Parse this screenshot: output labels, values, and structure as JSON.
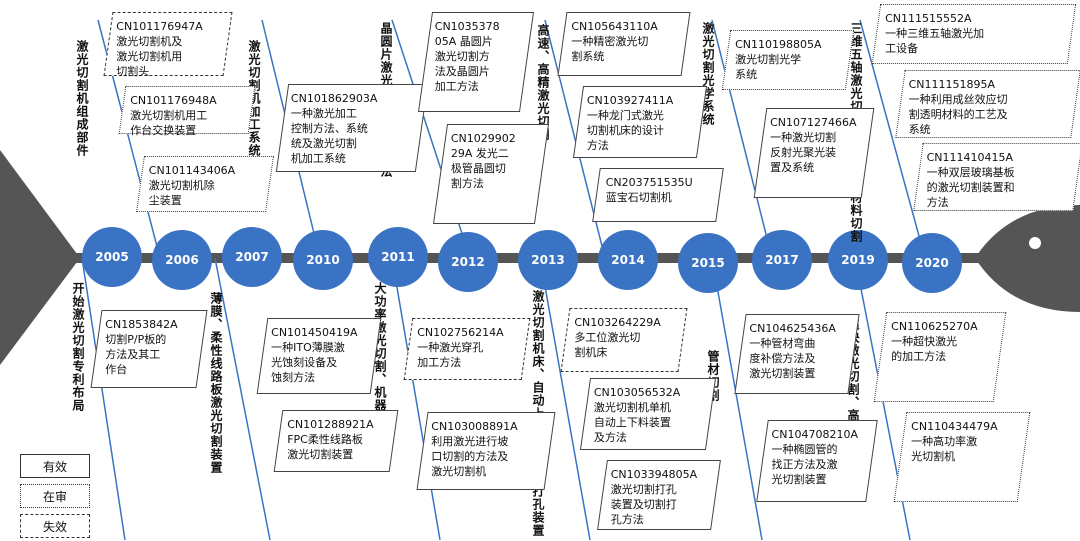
{
  "years": [
    "2005",
    "2006",
    "2007",
    "2010",
    "2011",
    "2012",
    "2013",
    "2014",
    "2015",
    "2017",
    "2019",
    "2020"
  ],
  "categories_top": [
    "激光切割机组成部件",
    "激光切割机加工系统",
    "晶圆片激光切割、加工方法",
    "高速、高精激光切割",
    "激光切割光学系统",
    "三维五轴激光切割、透明脆性材料切割"
  ],
  "categories_bottom": [
    "开始激光切割专利布局",
    "薄膜、柔性线路板激光切割装置",
    "大功率激光切割、机器人切割",
    "激光切割机床、自动上下料装置、打孔装置",
    "管材切割",
    "超快激光切割、高功率激光切割"
  ],
  "patents_top": [
    "CN101176947A\n激光切割机及\n激光切割机用\n切割头",
    "CN101176948A\n激光切割机用工\n作台交换装置",
    "CN101143406A\n激光切割机除\n尘装置",
    "CN101862903A\n一种激光加工\n控制方法、系统\n统及激光切割\n机加工系统",
    "CN1035378\n05A 晶圆片\n激光切割方\n法及晶圆片\n加工方法",
    "CN1029902\n29A 发光二\n极管晶圆切\n割方法",
    "CN105643110A\n一种精密激光切\n割系统",
    "CN103927411A\n一种龙门式激光\n切割机床的设计\n方法",
    "CN203751535U\n蓝宝石切割机",
    "CN110198805A\n激光切割光学\n系统",
    "CN107127466A\n一种激光切割\n反射光聚光装\n置及系统",
    "CN111515552A\n一种三维五轴激光加\n工设备",
    "CN111151895A\n一种利用成丝效应切\n割透明材料的工艺及\n系统",
    "CN111410415A\n一种双层玻璃基板\n的激光切割装置和\n方法"
  ],
  "patents_bottom": [
    "CN1853842A\n切割P/P板的\n方法及其工\n作台",
    "CN101450419A\n一种ITO薄膜激\n光蚀刻设备及\n蚀刻方法",
    "CN101288921A\nFPC柔性线路板\n激光切割装置",
    "CN102756214A\n一种激光穿孔\n加工方法",
    "CN103008891A\n利用激光进行坡\n口切割的方法及\n激光切割机",
    "CN103264229A\n多工位激光切\n割机床",
    "CN103056532A\n激光切割机单机\n自动上下料装置\n及方法",
    "CN103394805A\n激光切割打孔\n装置及切割打\n孔方法",
    "CN104625436A\n一种管材弯曲\n度补偿方法及\n激光切割装置",
    "CN104708210A\n一种椭圆管的\n找正方法及激\n光切割装置",
    "CN110625270A\n一种超快激光\n的加工方法",
    "CN110434479A\n一种高功率激\n光切割机"
  ],
  "legend": [
    "有效",
    "在审",
    "失效"
  ],
  "colors": {
    "year_fill": "#3b73c4",
    "spine": "#555555",
    "branch": "#3b73c4"
  }
}
